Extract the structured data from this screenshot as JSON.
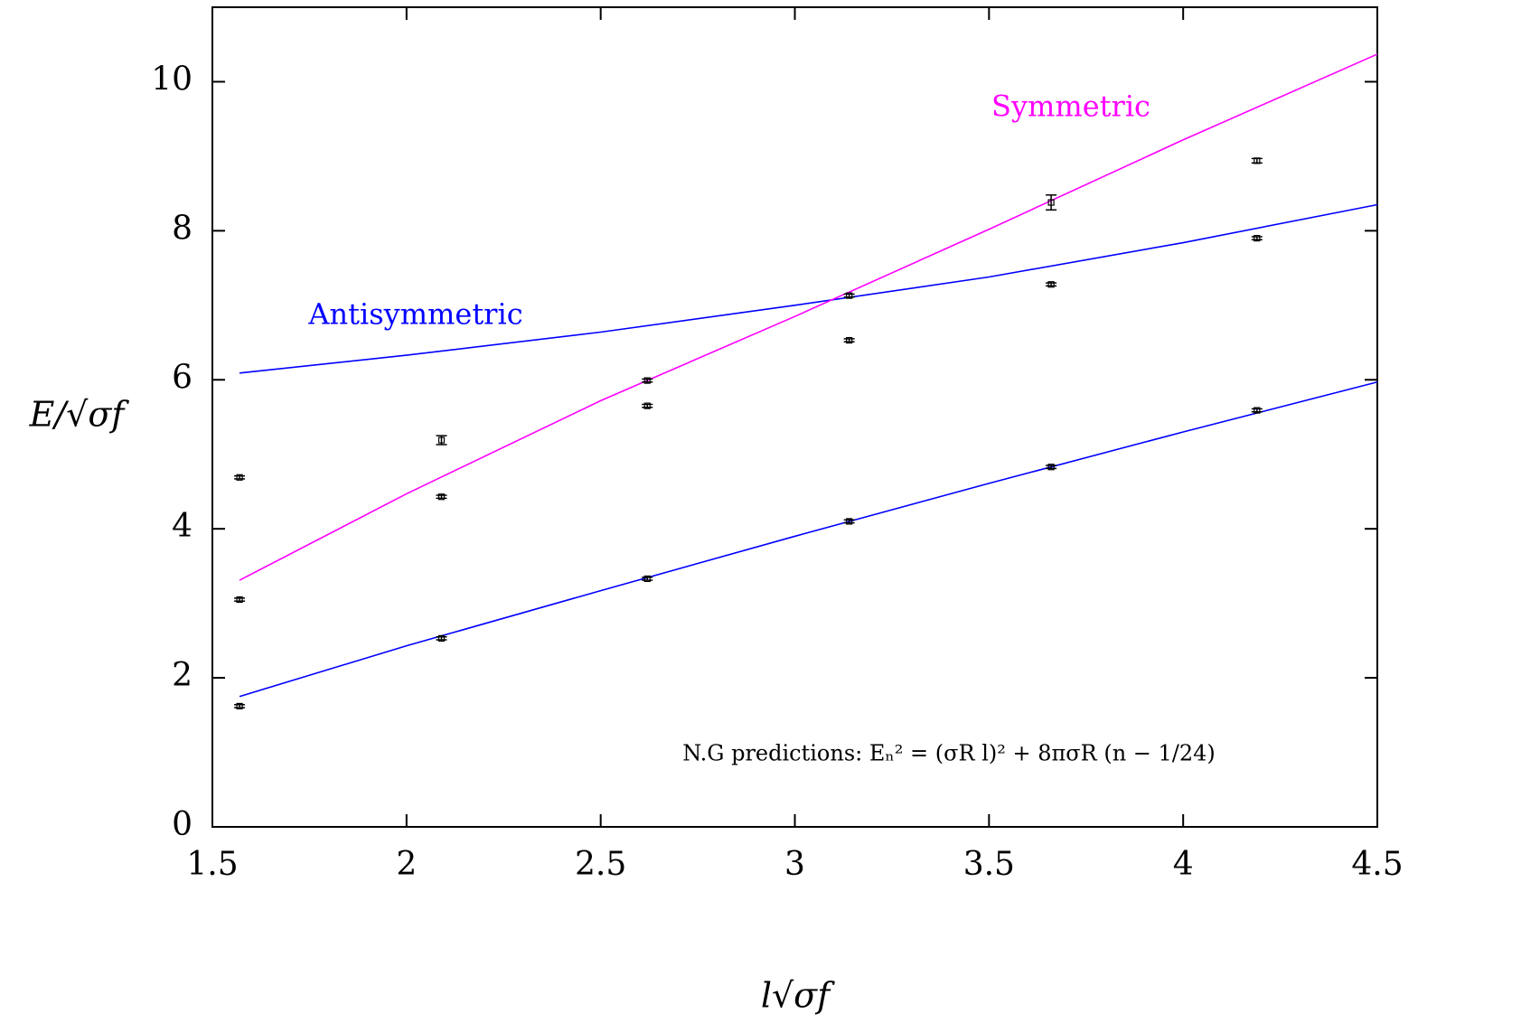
{
  "chart_data": {
    "type": "line",
    "xlabel": "l√σf",
    "ylabel": "E/√σf",
    "annotation": "N.G predictions: Eₙ² = (σR l)² + 8πσR (n − 1/24)",
    "xlim": [
      1.5,
      4.5
    ],
    "ylim": [
      0,
      11
    ],
    "xticks": [
      1.5,
      2,
      2.5,
      3,
      3.5,
      4,
      4.5
    ],
    "yticks": [
      0,
      2,
      4,
      6,
      8,
      10
    ],
    "grid": false,
    "series": [
      {
        "color": "#0000ff",
        "x": [
          1.57,
          2,
          2.5,
          3,
          3.5,
          4,
          4.5
        ],
        "values": [
          1.75,
          2.43,
          3.17,
          3.9,
          4.61,
          5.3,
          5.97
        ]
      },
      {
        "name": "Antisymmetric",
        "color": "#0000ff",
        "x": [
          1.57,
          2,
          2.5,
          3,
          3.5,
          4,
          4.5
        ],
        "values": [
          6.09,
          6.33,
          6.64,
          7.0,
          7.38,
          7.84,
          8.35
        ]
      },
      {
        "name": "Symmetric",
        "color": "#ff00ff",
        "x": [
          1.57,
          2,
          2.5,
          3,
          3.5,
          4,
          4.5
        ],
        "values": [
          3.31,
          4.47,
          5.72,
          6.85,
          8.02,
          9.22,
          10.37
        ]
      }
    ],
    "points": {
      "color": "#000000",
      "x": [
        1.57,
        1.57,
        1.57,
        2.09,
        2.09,
        2.09,
        2.62,
        2.62,
        2.62,
        3.14,
        3.14,
        3.14,
        3.66,
        3.66,
        3.66,
        4.19,
        4.19,
        4.19
      ],
      "values": [
        4.69,
        3.05,
        1.62,
        5.19,
        4.43,
        2.53,
        5.99,
        5.65,
        3.33,
        7.13,
        6.53,
        4.1,
        8.38,
        7.28,
        4.83,
        8.94,
        7.9,
        5.59
      ],
      "errors": [
        0.02,
        0.02,
        0.02,
        0.06,
        0.02,
        0.02,
        0.02,
        0.02,
        0.02,
        0.02,
        0.02,
        0.02,
        0.1,
        0.02,
        0.02,
        0.03,
        0.02,
        0.02
      ]
    }
  }
}
